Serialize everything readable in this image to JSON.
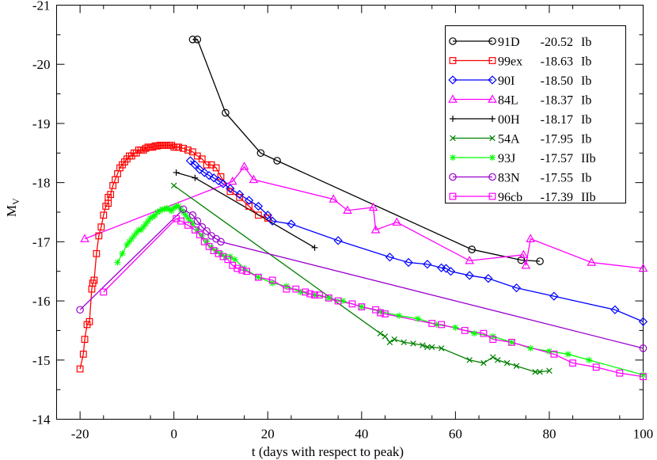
{
  "chart_data": {
    "type": "line",
    "title": "",
    "xlabel": "t (days with respect to peak)",
    "ylabel_main": "M",
    "ylabel_sub": "V",
    "xlim": [
      -25,
      100
    ],
    "ylim": [
      -14,
      -21
    ],
    "y_inverted": true,
    "xticks": [
      -20,
      0,
      20,
      40,
      60,
      80,
      100
    ],
    "yticks": [
      -14,
      -15,
      -16,
      -17,
      -18,
      -19,
      -20,
      -21
    ],
    "legend_position": "top-right",
    "series": [
      {
        "name": "91D",
        "mag": "-20.52",
        "sntype": "Ib",
        "color": "#000000",
        "marker": "circle",
        "x": [
          4,
          5,
          11,
          18.5,
          22,
          63.5,
          74,
          78
        ],
        "y": [
          -20.42,
          -20.42,
          -19.18,
          -18.5,
          -18.37,
          -16.87,
          -16.69,
          -16.67
        ]
      },
      {
        "name": "99ex",
        "mag": "-18.63",
        "sntype": "Ib",
        "color": "#ff0000",
        "marker": "square",
        "x": [
          -20,
          -19.3,
          -19,
          -18.5,
          -18,
          -17.5,
          -17.3,
          -17,
          -16.5,
          -16,
          -15.5,
          -15,
          -14.5,
          -14,
          -14,
          -13.5,
          -13,
          -12.5,
          -12,
          -11.5,
          -11,
          -10.5,
          -10,
          -9.5,
          -9,
          -8.5,
          -8,
          -7.5,
          -7,
          -6.5,
          -6,
          -5.5,
          -5,
          -4.5,
          -4,
          -3.5,
          -3,
          -2.5,
          -2,
          -1.5,
          -1,
          -0.5,
          0,
          0.5,
          1,
          2,
          3,
          4,
          5,
          6,
          7,
          8,
          9,
          10,
          12,
          14,
          16,
          18,
          20
        ],
        "y": [
          -14.85,
          -15.1,
          -15.35,
          -15.6,
          -15.65,
          -16.2,
          -16.3,
          -16.35,
          -16.8,
          -17.1,
          -17.25,
          -17.45,
          -17.6,
          -17.65,
          -17.75,
          -17.8,
          -17.95,
          -18.05,
          -18.15,
          -18.25,
          -18.3,
          -18.35,
          -18.4,
          -18.45,
          -18.45,
          -18.5,
          -18.5,
          -18.55,
          -18.55,
          -18.55,
          -18.58,
          -18.6,
          -18.6,
          -18.6,
          -18.62,
          -18.62,
          -18.63,
          -18.63,
          -18.63,
          -18.63,
          -18.63,
          -18.63,
          -18.6,
          -18.6,
          -18.6,
          -18.58,
          -18.55,
          -18.52,
          -18.45,
          -18.4,
          -18.3,
          -18.3,
          -18.25,
          -18.1,
          -17.85,
          -17.75,
          -17.6,
          -17.45,
          -17.4
        ]
      },
      {
        "name": "90I",
        "mag": "-18.50",
        "sntype": "Ib",
        "color": "#0000ff",
        "marker": "diamond",
        "x": [
          3.5,
          4.5,
          5.5,
          6.5,
          7.5,
          8.5,
          9.5,
          10.5,
          12,
          14,
          16,
          18,
          20,
          21,
          25,
          35,
          46,
          50,
          54,
          57,
          58,
          59,
          63,
          67,
          73,
          81,
          94,
          100
        ],
        "y": [
          -18.37,
          -18.3,
          -18.22,
          -18.17,
          -18.12,
          -18.08,
          -18.03,
          -17.98,
          -17.9,
          -17.8,
          -17.7,
          -17.6,
          -17.45,
          -17.35,
          -17.3,
          -17.02,
          -16.74,
          -16.65,
          -16.62,
          -16.56,
          -16.55,
          -16.5,
          -16.43,
          -16.38,
          -16.22,
          -16.08,
          -15.85,
          -15.65
        ]
      },
      {
        "name": "84L",
        "mag": "-18.37",
        "sntype": "Ib",
        "color": "#ff00ff",
        "marker": "triangle",
        "x": [
          -19,
          12.5,
          15,
          17,
          34,
          37,
          42.5,
          43,
          47.5,
          63,
          74.5,
          75,
          76,
          89,
          100
        ],
        "y": [
          -17.05,
          -18.02,
          -18.27,
          -18.05,
          -17.72,
          -17.53,
          -17.58,
          -17.2,
          -17.33,
          -16.68,
          -16.78,
          -16.6,
          -17.05,
          -16.65,
          -16.55
        ]
      },
      {
        "name": "00H",
        "mag": "-18.17",
        "sntype": "Ib",
        "color": "#000000",
        "marker": "plus",
        "x": [
          0.5,
          4.5,
          30
        ],
        "y": [
          -18.17,
          -18.08,
          -16.9
        ]
      },
      {
        "name": "54A",
        "mag": "-17.95",
        "sntype": "Ib",
        "color": "#008000",
        "marker": "x",
        "x": [
          0,
          44,
          45,
          46,
          47,
          49,
          51,
          53,
          54,
          55,
          57,
          63,
          66,
          68,
          69,
          71,
          73,
          77,
          78,
          80
        ],
        "y": [
          -17.95,
          -15.45,
          -15.4,
          -15.3,
          -15.35,
          -15.3,
          -15.28,
          -15.25,
          -15.22,
          -15.22,
          -15.2,
          -15,
          -14.95,
          -15.05,
          -15,
          -14.95,
          -14.9,
          -14.8,
          -14.8,
          -14.82
        ]
      },
      {
        "name": "93J",
        "mag": "-17.57",
        "sntype": "IIb",
        "color": "#00ff00",
        "marker": "star",
        "x": [
          -12,
          -11,
          -10,
          -9.5,
          -9,
          -8.5,
          -8,
          -7.5,
          -7,
          -6.5,
          -6,
          -5.5,
          -5,
          -4.5,
          -4,
          -3.5,
          -3,
          -2.5,
          -2,
          -1.5,
          -1,
          -0.5,
          0,
          0.5,
          1,
          1.5,
          2,
          2.5,
          3,
          3.5,
          4,
          5,
          6,
          7,
          8,
          9,
          10,
          11,
          12,
          13,
          15,
          18,
          21,
          24,
          27,
          30,
          33,
          36,
          40,
          44,
          48,
          52,
          56,
          60,
          64,
          68,
          72,
          76,
          80,
          84,
          88.5,
          100
        ],
        "y": [
          -16.65,
          -16.8,
          -16.95,
          -17,
          -17.05,
          -17.1,
          -17.15,
          -17.2,
          -17.2,
          -17.25,
          -17.3,
          -17.35,
          -17.4,
          -17.42,
          -17.45,
          -17.5,
          -17.52,
          -17.55,
          -17.55,
          -17.57,
          -17.55,
          -17.52,
          -17.57,
          -17.6,
          -17.6,
          -17.55,
          -17.5,
          -17.45,
          -17.4,
          -17.35,
          -17.3,
          -17.2,
          -17.1,
          -17,
          -16.9,
          -16.85,
          -16.8,
          -16.75,
          -16.75,
          -16.7,
          -16.55,
          -16.4,
          -16.3,
          -16.25,
          -16.15,
          -16.1,
          -16.05,
          -16,
          -15.9,
          -15.82,
          -15.75,
          -15.7,
          -15.6,
          -15.55,
          -15.45,
          -15.4,
          -15.3,
          -15.2,
          -15.15,
          -15.1,
          -15,
          -14.75
        ]
      },
      {
        "name": "83N",
        "mag": "-17.55",
        "sntype": "Ib",
        "color": "#9900cc",
        "marker": "circle",
        "x": [
          -20,
          2,
          4,
          5,
          6,
          7,
          8,
          9,
          10,
          100
        ],
        "y": [
          -15.85,
          -17.55,
          -17.45,
          -17.35,
          -17.25,
          -17.18,
          -17.1,
          -17.05,
          -17,
          -15.2
        ]
      },
      {
        "name": "96cb",
        "mag": "-17.39",
        "sntype": "IIb",
        "color": "#ff00ff",
        "marker": "square",
        "x": [
          -15,
          0.5,
          1.5,
          3,
          4.5,
          5.5,
          6.5,
          7.5,
          8.5,
          9.5,
          10.5,
          11.5,
          12.5,
          13.5,
          14.5,
          15.5,
          18,
          21,
          24,
          26,
          28,
          29,
          30,
          31,
          33,
          35,
          38,
          40,
          43,
          44,
          45,
          55,
          57,
          62,
          66,
          68,
          72,
          81,
          85,
          90,
          95,
          100
        ],
        "y": [
          -16.15,
          -17.39,
          -17.35,
          -17.28,
          -17.2,
          -17.12,
          -17,
          -16.92,
          -16.85,
          -16.8,
          -16.75,
          -16.7,
          -16.6,
          -16.55,
          -16.52,
          -16.5,
          -16.4,
          -16.35,
          -16.2,
          -16.2,
          -16.15,
          -16.12,
          -16.1,
          -16.1,
          -16.05,
          -16,
          -15.95,
          -15.9,
          -15.85,
          -15.8,
          -15.78,
          -15.62,
          -15.6,
          -15.5,
          -15.45,
          -15.35,
          -15.3,
          -15.1,
          -14.95,
          -14.88,
          -14.78,
          -14.72
        ]
      }
    ]
  }
}
